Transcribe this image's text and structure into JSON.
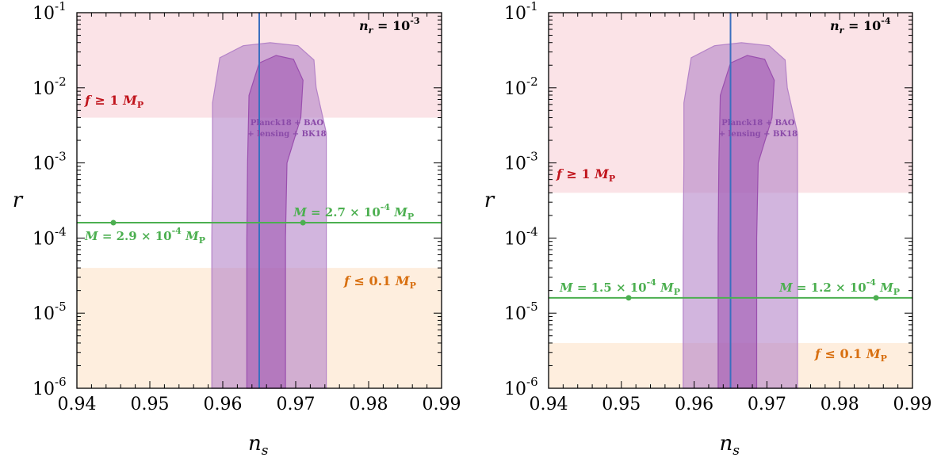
{
  "chart_data": [
    {
      "type": "region-plot",
      "xlabel": "n_s",
      "ylabel": "r",
      "xlim": [
        0.94,
        0.99
      ],
      "ylim": [
        1e-06,
        0.1
      ],
      "yscale": "log",
      "x_ticks": [
        "0.94",
        "0.95",
        "0.96",
        "0.97",
        "0.98",
        "0.99"
      ],
      "y_tick_exponents": [
        "-6",
        "-5",
        "-4",
        "-3",
        "-2",
        "-1"
      ],
      "y_tick_base": "10",
      "corner_label": "n_r = 10^-3",
      "regions": {
        "upper": {
          "label": "f ≥ 1 M_P",
          "r_min": 0.004,
          "color": "#f7c8d0"
        },
        "lower": {
          "label": "f ≤ 0.1 M_P",
          "r_max": 4e-05,
          "color": "#fde3c8"
        }
      },
      "contour_label": [
        "Planck18 + BAO",
        "+ lensing + BK18"
      ],
      "vertical_line_ns": 0.965,
      "horizontal_line_r": 0.00016,
      "points": [
        {
          "ns": 0.945,
          "r": 0.00016,
          "label": "M = 2.9 × 10^-4 M_P"
        },
        {
          "ns": 0.971,
          "r": 0.00016,
          "label": "M = 2.7 × 10^-4 M_P"
        }
      ]
    },
    {
      "type": "region-plot",
      "xlabel": "n_s",
      "ylabel": "r",
      "xlim": [
        0.94,
        0.99
      ],
      "ylim": [
        1e-06,
        0.1
      ],
      "yscale": "log",
      "x_ticks": [
        "0.94",
        "0.95",
        "0.96",
        "0.97",
        "0.98",
        "0.99"
      ],
      "y_tick_exponents": [
        "-6",
        "-5",
        "-4",
        "-3",
        "-2",
        "-1"
      ],
      "y_tick_base": "10",
      "corner_label": "n_r = 10^-4",
      "regions": {
        "upper": {
          "label": "f ≥ 1 M_P",
          "r_min": 0.0004,
          "color": "#f7c8d0"
        },
        "lower": {
          "label": "f ≤ 0.1 M_P",
          "r_max": 4e-06,
          "color": "#fde3c8"
        }
      },
      "contour_label": [
        "Planck18 + BAO",
        "+ lensing + BK18"
      ],
      "vertical_line_ns": 0.965,
      "horizontal_line_r": 1.6e-05,
      "points": [
        {
          "ns": 0.951,
          "r": 1.6e-05,
          "label": "M = 1.5 × 10^-4 M_P"
        },
        {
          "ns": 0.985,
          "r": 1.6e-05,
          "label": "M = 1.2 × 10^-4 M_P"
        }
      ]
    }
  ],
  "colors": {
    "upper_label": "#c0141c",
    "lower_label": "#d86f10",
    "contour_outer": "#b483c8",
    "contour_inner": "#9a4fae",
    "contour_text": "#8a4aa8",
    "vline": "#3a6fbf",
    "green": "#4caf50"
  }
}
